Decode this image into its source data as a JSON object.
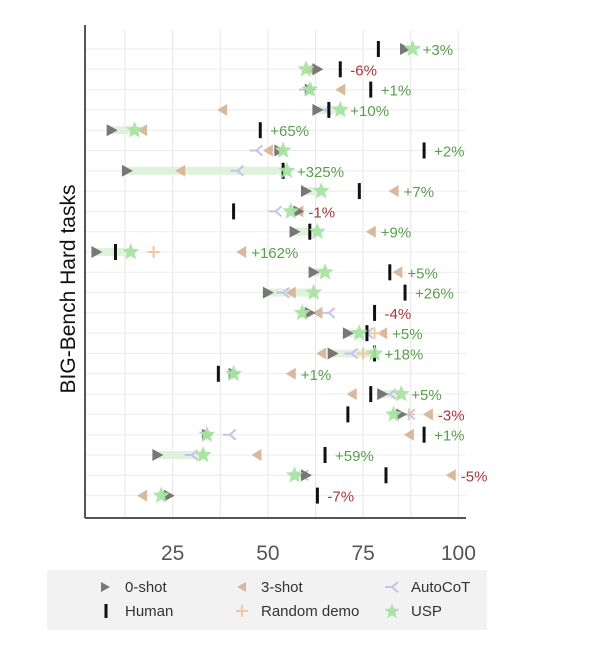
{
  "chart_data": {
    "type": "scatter",
    "ylabel": "BIG-Bench Hard tasks",
    "xticks": [
      "25",
      "50",
      "75",
      "100"
    ],
    "xlim": [
      2,
      102
    ],
    "grid": true,
    "legend": {
      "placement": "bottom",
      "entries": [
        {
          "key": "zero",
          "label": "0-shot"
        },
        {
          "key": "three",
          "label": "3-shot"
        },
        {
          "key": "autocot",
          "label": "AutoCoT"
        },
        {
          "key": "human",
          "label": "Human"
        },
        {
          "key": "random",
          "label": "Random demo"
        },
        {
          "key": "usp",
          "label": "USP"
        }
      ]
    },
    "colors": {
      "zero": "#777777",
      "three": "#d9b89c",
      "autocot": "#c6c1ee",
      "human": "#111111",
      "random": "#f3c7a3",
      "usp": "#a9e3a3",
      "positive": "#5a9e4e",
      "negative": "#a23b3b",
      "bar": "#dcf2d8"
    },
    "tasks": [
      {
        "zero": 86,
        "three": null,
        "autocot": null,
        "random": null,
        "human": 79,
        "usp": 88,
        "delta": "+3%"
      },
      {
        "zero": 63,
        "three": 61,
        "autocot": null,
        "random": null,
        "human": 69,
        "usp": 60,
        "delta": "-6%"
      },
      {
        "zero": 61,
        "three": 69,
        "autocot": 60,
        "random": null,
        "human": 77,
        "usp": 61,
        "delta": "+1%"
      },
      {
        "zero": 63,
        "three": 38,
        "autocot": 65,
        "random": null,
        "human": 66,
        "usp": 69,
        "delta": "+10%"
      },
      {
        "zero": 9,
        "three": 17,
        "autocot": null,
        "random": null,
        "human": 48,
        "usp": 15,
        "delta": "+65%"
      },
      {
        "zero": 53,
        "three": 50,
        "autocot": 47,
        "random": null,
        "human": 91,
        "usp": 54,
        "delta": "+2%"
      },
      {
        "zero": 13,
        "three": 27,
        "autocot": 42,
        "random": null,
        "human": 54,
        "usp": 55,
        "delta": "+325%"
      },
      {
        "zero": 60,
        "three": 83,
        "autocot": null,
        "random": null,
        "human": 74,
        "usp": 64,
        "delta": "+7%"
      },
      {
        "zero": 58,
        "three": 58,
        "autocot": 52,
        "random": null,
        "human": 41,
        "usp": 56,
        "delta": "-1%"
      },
      {
        "zero": 57,
        "three": 77,
        "autocot": null,
        "random": null,
        "human": 61,
        "usp": 63,
        "delta": "+9%"
      },
      {
        "zero": 5,
        "three": 43,
        "autocot": null,
        "random": 20,
        "human": 10,
        "usp": 14,
        "delta": "+162%"
      },
      {
        "zero": 62,
        "three": 84,
        "autocot": null,
        "random": null,
        "human": 82,
        "usp": 65,
        "delta": "+5%"
      },
      {
        "zero": 50,
        "three": 56,
        "autocot": 54,
        "random": null,
        "human": 86,
        "usp": 62,
        "delta": "+26%"
      },
      {
        "zero": 61,
        "three": 63,
        "autocot": 66,
        "random": null,
        "human": 78,
        "usp": 59,
        "delta": "-4%"
      },
      {
        "zero": 71,
        "three": 80,
        "autocot": 76,
        "random": 78,
        "human": 76,
        "usp": 74,
        "delta": "+5%"
      },
      {
        "zero": 67,
        "three": 64,
        "autocot": 72,
        "random": 75,
        "human": 78,
        "usp": 78,
        "delta": "+18%"
      },
      {
        "zero": 41,
        "three": 56,
        "autocot": null,
        "random": null,
        "human": 37,
        "usp": 41,
        "delta": "+1%"
      },
      {
        "zero": 80,
        "three": 72,
        "autocot": 82,
        "random": null,
        "human": 77,
        "usp": 85,
        "delta": "+5%"
      },
      {
        "zero": 85,
        "three": 92,
        "autocot": 87,
        "random": 87,
        "human": 71,
        "usp": 83,
        "delta": "-3%"
      },
      {
        "zero": 34,
        "three": 87,
        "autocot": 40,
        "random": null,
        "human": 91,
        "usp": 34,
        "delta": "+1%"
      },
      {
        "zero": 21,
        "three": 47,
        "autocot": 30,
        "random": null,
        "human": 65,
        "usp": 33,
        "delta": "+59%"
      },
      {
        "zero": 60,
        "three": 98,
        "autocot": 59,
        "random": null,
        "human": 81,
        "usp": 57,
        "delta": "-5%"
      },
      {
        "zero": 24,
        "three": 17,
        "autocot": null,
        "random": null,
        "human": 63,
        "usp": 22,
        "delta": "-7%"
      }
    ]
  }
}
